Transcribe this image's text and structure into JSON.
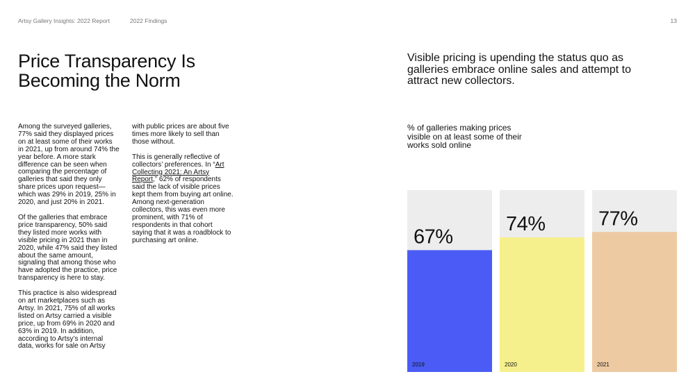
{
  "header": {
    "report": "Artsy Gallery Insights: 2022 Report",
    "section": "2022 Findings",
    "page": "13"
  },
  "title": "Price Transparency Is Becoming the Norm",
  "body": [
    "Among the surveyed galleries, 77% said they displayed prices on at least some of their works in 2021, up from around 74% the year before. A more stark difference can be seen when comparing the percentage of galleries that said they only share prices upon request—which was 29% in 2019, 25% in 2020, and just 20% in 2021.",
    "Of the galleries that embrace price transparency, 50% said they listed more works with visible pricing in 2021 than in 2020, while 47% said they listed about the same amount, signaling that among those who have adopted the practice, price transparency is here to stay.",
    "This practice is also widespread on art marketplaces such as Artsy. In 2021, 75% of all works listed on Artsy carried a visible price, up from 69% in 2020 and 63% in 2019. In addition, according to Artsy’s internal data, works for sale on Artsy with public prices are about five times more likely to sell than those without.",
    {
      "before": "This is generally reflective of collectors’ preferences. In “",
      "link": "Art Collecting 2021: An Artsy Report",
      "after": ",” 62% of respondents said the lack of visible prices kept them from buying art online. Among next-generation collectors, this was even more prominent, with 71% of respondents in that cohort saying that it was a roadblock to purchasing art online."
    }
  ],
  "chart_data": {
    "type": "bar",
    "title": "Visible pricing is upending the status quo as galleries embrace online sales and attempt to attract new collectors.",
    "subtitle": "% of galleries making prices visible on at least some of their works sold online",
    "categories": [
      "2019",
      "2020",
      "2021"
    ],
    "values": [
      67,
      74,
      77
    ],
    "value_labels": [
      "67%",
      "74%",
      "77%"
    ],
    "colors": [
      "#4a5cf5",
      "#f5f08c",
      "#edcaa2"
    ],
    "background": "#ededed",
    "ylim": [
      0,
      100
    ]
  }
}
